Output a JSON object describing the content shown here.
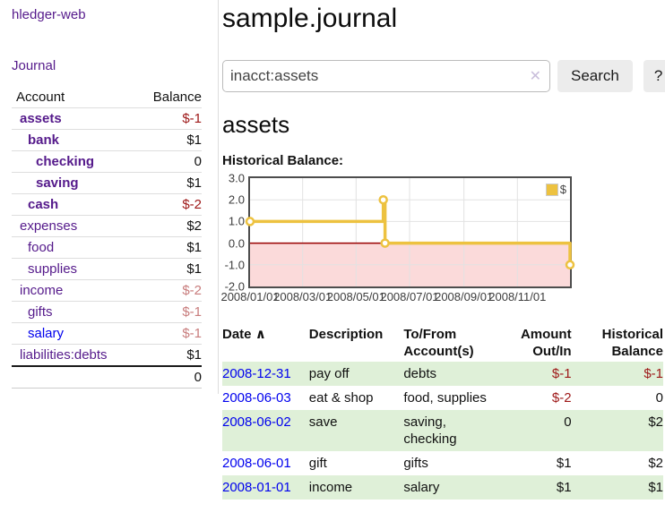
{
  "app": {
    "brand": "hledger-web",
    "nav_journal": "Journal"
  },
  "sidebar": {
    "accounts": {
      "col_account": "Account",
      "col_balance": "Balance",
      "rows": [
        {
          "name": "assets",
          "balance": "$-1"
        },
        {
          "name": "bank",
          "balance": "$1"
        },
        {
          "name": "checking",
          "balance": "0"
        },
        {
          "name": "saving",
          "balance": "$1"
        },
        {
          "name": "cash",
          "balance": "$-2"
        },
        {
          "name": "expenses",
          "balance": "$2"
        },
        {
          "name": "food",
          "balance": "$1"
        },
        {
          "name": "supplies",
          "balance": "$1"
        },
        {
          "name": "income",
          "balance": "$-2"
        },
        {
          "name": "gifts",
          "balance": "$-1"
        },
        {
          "name": "salary",
          "balance": "$-1"
        },
        {
          "name": "liabilities:debts",
          "balance": "$1"
        }
      ],
      "total": "0"
    }
  },
  "header": {
    "title": "sample.journal"
  },
  "search": {
    "query": "inacct:assets",
    "clear_icon": "✕",
    "search_button": "Search",
    "help_button": "?"
  },
  "account_page": {
    "heading": "assets",
    "chart_label": "Historical Balance:"
  },
  "chart_data": {
    "type": "line",
    "title": "Historical Balance of assets",
    "legend": [
      "$"
    ],
    "step": true,
    "ylim": [
      -2,
      3
    ],
    "x_domain_days": 365,
    "yticks": [
      "3.0",
      "2.0",
      "1.0",
      "0.0",
      "-1.0",
      "-2.0"
    ],
    "ytick_values": [
      3,
      2,
      1,
      0,
      -1,
      -2
    ],
    "xticks": [
      {
        "day": 0,
        "label": "2008/01/01"
      },
      {
        "day": 60,
        "label": "2008/03/01"
      },
      {
        "day": 121,
        "label": "2008/05/01"
      },
      {
        "day": 182,
        "label": "2008/07/01"
      },
      {
        "day": 244,
        "label": "2008/09/01"
      },
      {
        "day": 305,
        "label": "2008/11/01"
      }
    ],
    "points": [
      {
        "date": "2008-01-01",
        "day": 0,
        "value": 1
      },
      {
        "date": "2008-06-01",
        "day": 152,
        "value": 2
      },
      {
        "date": "2008-06-03",
        "day": 154,
        "value": 0
      },
      {
        "date": "2008-12-31",
        "day": 365,
        "value": -1
      }
    ],
    "negative_region_below": 0,
    "colors": {
      "series": "#edc240",
      "negative_fill": "#fbdada",
      "zero_line": "#990000",
      "grid": "#e2e2e2"
    }
  },
  "register": {
    "headers": {
      "date": "Date",
      "sort_icon": "∧",
      "description": "Description",
      "account": "To/From Account(s)",
      "amount": "Amount Out/In",
      "balance": "Historical Balance"
    },
    "rows": [
      {
        "date": "2008-12-31",
        "description": "pay off",
        "accounts": "debts",
        "amount": "$-1",
        "balance": "$-1"
      },
      {
        "date": "2008-06-03",
        "description": "eat & shop",
        "accounts": "food, supplies",
        "amount": "$-2",
        "balance": "0"
      },
      {
        "date": "2008-06-02",
        "description": "save",
        "accounts": "saving, checking",
        "amount": "0",
        "balance": "$2"
      },
      {
        "date": "2008-06-01",
        "description": "gift",
        "accounts": "gifts",
        "amount": "$1",
        "balance": "$2"
      },
      {
        "date": "2008-01-01",
        "description": "income",
        "accounts": "salary",
        "amount": "$1",
        "balance": "$1"
      }
    ]
  }
}
